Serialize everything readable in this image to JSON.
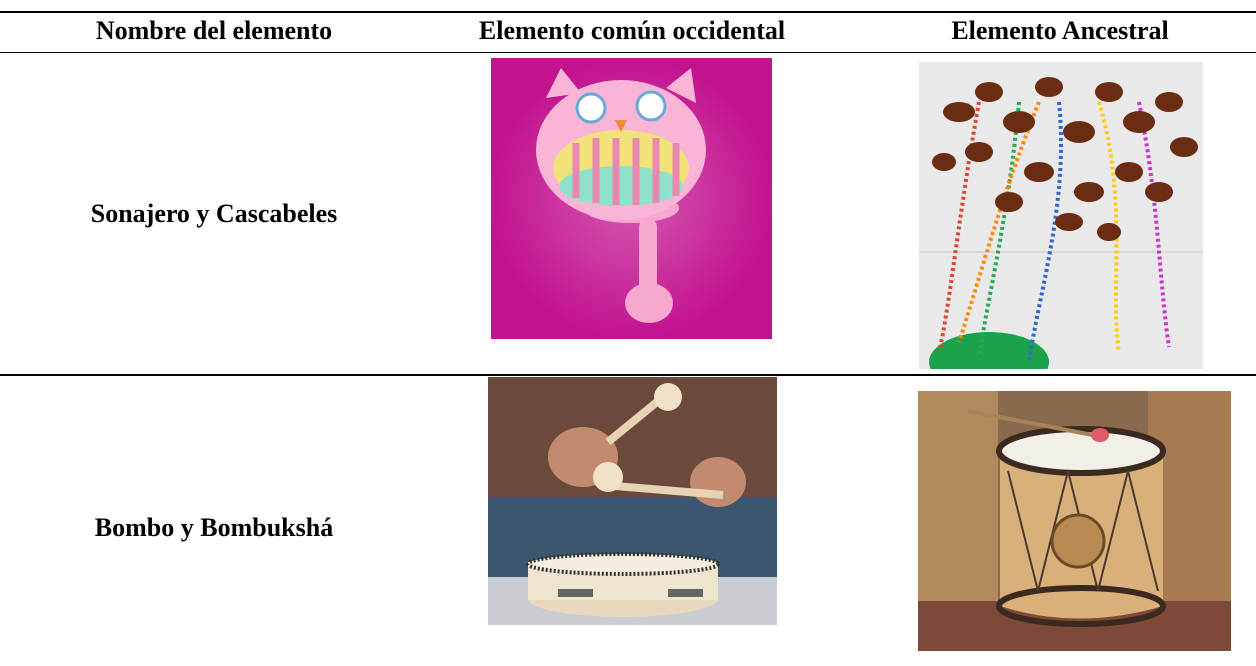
{
  "header": {
    "columns": [
      "Nombre del elemento",
      "Elemento común occidental",
      "Elemento Ancestral"
    ]
  },
  "table": {
    "rows": [
      {
        "name": "Sonajero y Cascabeles"
      },
      {
        "name": "Bombo y Bombukshá"
      }
    ]
  }
}
